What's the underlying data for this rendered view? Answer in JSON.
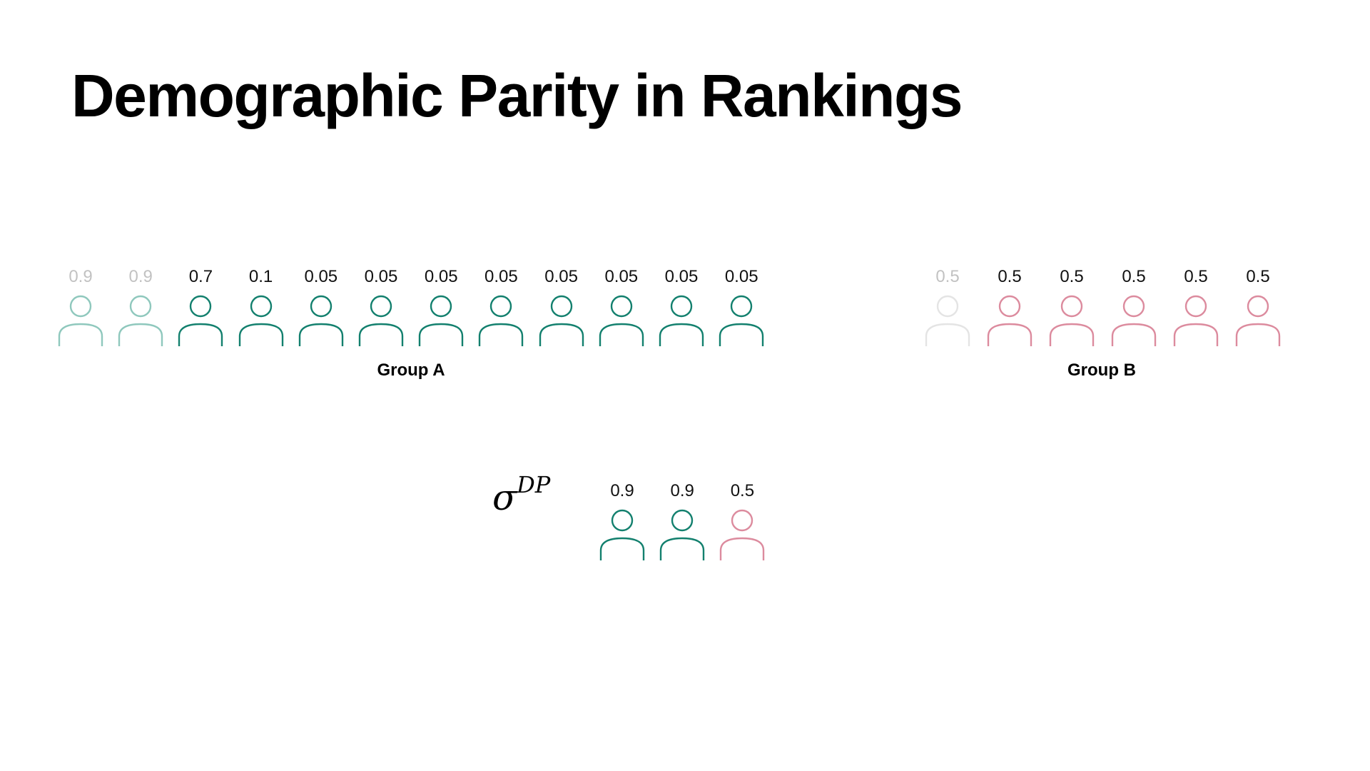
{
  "title": "Demographic Parity in Rankings",
  "colors": {
    "group_a": "#13806e",
    "group_b": "#dc8b9e",
    "score_text": "#111111",
    "faded_score_text": "#c2c2c2",
    "faded_group_a": "#8fc8bd",
    "faded_group_b": "#e4e4e4"
  },
  "icons": {
    "person": "person-outline-icon"
  },
  "groups": [
    {
      "label": "Group A",
      "color": "group_a",
      "people": [
        {
          "score": "0.9",
          "faded": true
        },
        {
          "score": "0.9",
          "faded": true
        },
        {
          "score": "0.7",
          "faded": false
        },
        {
          "score": "0.1",
          "faded": false
        },
        {
          "score": "0.05",
          "faded": false
        },
        {
          "score": "0.05",
          "faded": false
        },
        {
          "score": "0.05",
          "faded": false
        },
        {
          "score": "0.05",
          "faded": false
        },
        {
          "score": "0.05",
          "faded": false
        },
        {
          "score": "0.05",
          "faded": false
        },
        {
          "score": "0.05",
          "faded": false
        },
        {
          "score": "0.05",
          "faded": false
        }
      ]
    },
    {
      "label": "Group B",
      "color": "group_b",
      "people": [
        {
          "score": "0.5",
          "faded": true
        },
        {
          "score": "0.5",
          "faded": false
        },
        {
          "score": "0.5",
          "faded": false
        },
        {
          "score": "0.5",
          "faded": false
        },
        {
          "score": "0.5",
          "faded": false
        },
        {
          "score": "0.5",
          "faded": false
        }
      ]
    }
  ],
  "ranking": {
    "symbol": "σ",
    "superscript": "DP",
    "people": [
      {
        "score": "0.9",
        "group": "group_a"
      },
      {
        "score": "0.9",
        "group": "group_a"
      },
      {
        "score": "0.5",
        "group": "group_b"
      }
    ]
  }
}
